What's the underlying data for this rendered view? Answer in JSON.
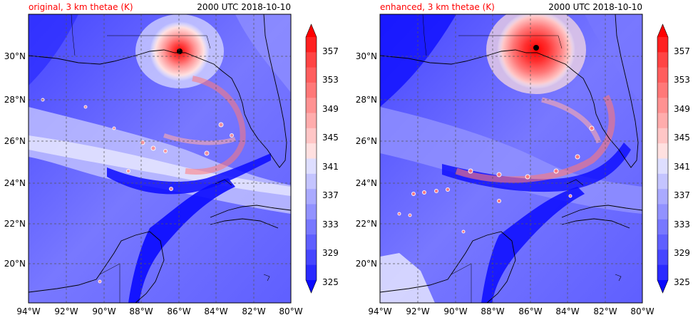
{
  "figure": {
    "panels": [
      {
        "id": "original",
        "title_left": "original, 3 km thetae (K)",
        "title_right": "2000 UTC 2018-10-10"
      },
      {
        "id": "enhanced",
        "title_left": "enhanced, 3 km thetae (K)",
        "title_right": "2000 UTC 2018-10-10"
      }
    ],
    "lon_ticks": [
      "94°W",
      "92°W",
      "90°W",
      "88°W",
      "86°W",
      "84°W",
      "82°W",
      "80°W"
    ],
    "lat_ticks": [
      "30°N",
      "28°N",
      "26°N",
      "24°N",
      "22°N",
      "20°N"
    ],
    "colorbar": {
      "labels": [
        "357",
        "353",
        "349",
        "345",
        "341",
        "337",
        "333",
        "329",
        "325"
      ],
      "levels": [
        325,
        327,
        329,
        331,
        333,
        335,
        337,
        339,
        341,
        343,
        345,
        347,
        349,
        351,
        353,
        355,
        357,
        359
      ],
      "colors": [
        "#0a0aff",
        "#2a2aff",
        "#4646ff",
        "#5f5fff",
        "#7878ff",
        "#9292ff",
        "#aaaaff",
        "#c4c4ff",
        "#dedeff",
        "#ffe0e0",
        "#ffc6c6",
        "#ffacac",
        "#ff9292",
        "#ff7878",
        "#ff5e5e",
        "#ff4444",
        "#ff2020",
        "#ff0000"
      ]
    }
  },
  "chart_data": {
    "type": "heatmap",
    "variable": "3 km thetae (K)",
    "time": "2000 UTC 2018-10-10",
    "xlim": [
      -94,
      -80
    ],
    "ylim": [
      18,
      32
    ],
    "panels": [
      "original",
      "enhanced"
    ],
    "storm_center": {
      "lon": -86.0,
      "lat": 30.3
    },
    "colorbar_range": [
      325,
      359
    ]
  }
}
